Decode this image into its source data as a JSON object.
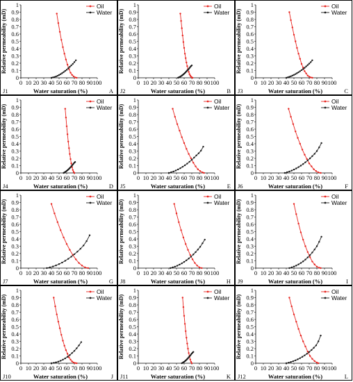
{
  "legend": {
    "oil_label": "Oil",
    "water_label": "Water"
  },
  "colors": {
    "oil": "#e8231e",
    "water": "#1a1a1a",
    "border": "#000000"
  },
  "x_axis_label": "Water saturation (%)",
  "y_axis_label": "Relative permeability (mD)",
  "x_ticks": [
    "0",
    "10",
    "20",
    "30",
    "40",
    "50",
    "60",
    "70",
    "80",
    "90",
    "100"
  ],
  "y_ticks": [
    "0",
    "0.1",
    "0.2",
    "0.3",
    "0.4",
    "0.5",
    "0.6",
    "0.7",
    "0.8",
    "0.9",
    "1"
  ],
  "chart_data": [
    {
      "type": "line",
      "well": "J1",
      "panel": "A",
      "xlim": [
        0,
        100
      ],
      "ylim": [
        0,
        1
      ],
      "legend": "top-right",
      "grid": false,
      "series": [
        {
          "name": "Oil",
          "x": [
            47,
            49,
            51,
            53,
            55,
            57,
            59,
            61,
            63,
            65,
            67,
            69,
            71,
            73
          ],
          "y": [
            0.88,
            0.75,
            0.63,
            0.52,
            0.42,
            0.33,
            0.25,
            0.18,
            0.12,
            0.07,
            0.04,
            0.02,
            0.005,
            0
          ]
        },
        {
          "name": "Water",
          "x": [
            40,
            42,
            44,
            46,
            48,
            50,
            52,
            54,
            56,
            58,
            60,
            62,
            64,
            66,
            68,
            70,
            72
          ],
          "y": [
            0,
            0.005,
            0.01,
            0.018,
            0.027,
            0.038,
            0.05,
            0.063,
            0.078,
            0.094,
            0.11,
            0.13,
            0.15,
            0.17,
            0.19,
            0.215,
            0.24
          ]
        }
      ]
    },
    {
      "type": "line",
      "well": "J2",
      "panel": "B",
      "xlim": [
        0,
        100
      ],
      "ylim": [
        0,
        1
      ],
      "legend": "top-right",
      "grid": false,
      "series": [
        {
          "name": "Oil",
          "x": [
            55,
            56,
            57,
            58,
            59,
            60,
            61,
            62,
            63,
            64,
            65,
            66,
            67,
            68,
            69,
            70,
            71
          ],
          "y": [
            0.88,
            0.78,
            0.68,
            0.58,
            0.49,
            0.41,
            0.33,
            0.27,
            0.21,
            0.16,
            0.12,
            0.08,
            0.05,
            0.03,
            0.015,
            0.005,
            0
          ]
        },
        {
          "name": "Water",
          "x": [
            52,
            53,
            54,
            55,
            56,
            57,
            58,
            59,
            60,
            61,
            62,
            63,
            64,
            65,
            66,
            67,
            68,
            69,
            70
          ],
          "y": [
            0,
            0.005,
            0.01,
            0.016,
            0.023,
            0.03,
            0.038,
            0.047,
            0.056,
            0.066,
            0.077,
            0.088,
            0.1,
            0.11,
            0.12,
            0.135,
            0.148,
            0.16,
            0.17
          ]
        }
      ]
    },
    {
      "type": "line",
      "well": "J3",
      "panel": "C",
      "xlim": [
        0,
        100
      ],
      "ylim": [
        0,
        1
      ],
      "legend": "top-right",
      "grid": false,
      "series": [
        {
          "name": "Oil",
          "x": [
            44,
            46,
            48,
            50,
            52,
            54,
            56,
            58,
            60,
            62,
            64,
            66,
            68,
            70,
            72,
            74
          ],
          "y": [
            0.9,
            0.79,
            0.69,
            0.59,
            0.5,
            0.41,
            0.33,
            0.26,
            0.19,
            0.14,
            0.09,
            0.06,
            0.03,
            0.015,
            0.005,
            0
          ]
        },
        {
          "name": "Water",
          "x": [
            40,
            42,
            44,
            46,
            48,
            50,
            52,
            54,
            56,
            58,
            60,
            62,
            64,
            66,
            68,
            70,
            72,
            74
          ],
          "y": [
            0,
            0.006,
            0.013,
            0.021,
            0.03,
            0.04,
            0.051,
            0.063,
            0.076,
            0.09,
            0.105,
            0.12,
            0.137,
            0.155,
            0.174,
            0.194,
            0.215,
            0.24
          ]
        }
      ]
    },
    {
      "type": "line",
      "well": "J4",
      "panel": "D",
      "xlim": [
        0,
        100
      ],
      "ylim": [
        0,
        1
      ],
      "legend": "top-right",
      "grid": false,
      "series": [
        {
          "name": "Oil",
          "x": [
            58,
            59,
            60,
            61,
            62,
            63,
            64,
            65,
            66,
            67,
            68,
            69,
            70
          ],
          "y": [
            0.88,
            0.76,
            0.64,
            0.53,
            0.43,
            0.34,
            0.26,
            0.19,
            0.13,
            0.08,
            0.04,
            0.015,
            0
          ]
        },
        {
          "name": "Water",
          "x": [
            56,
            57,
            58,
            59,
            60,
            61,
            62,
            63,
            64,
            65,
            66,
            67,
            68,
            69,
            70,
            71
          ],
          "y": [
            0,
            0.006,
            0.013,
            0.02,
            0.028,
            0.037,
            0.046,
            0.056,
            0.067,
            0.078,
            0.09,
            0.102,
            0.115,
            0.128,
            0.14,
            0.15
          ]
        }
      ]
    },
    {
      "type": "line",
      "well": "J5",
      "panel": "E",
      "xlim": [
        0,
        100
      ],
      "ylim": [
        0,
        1
      ],
      "legend": "top-right",
      "grid": false,
      "series": [
        {
          "name": "Oil",
          "x": [
            45,
            48,
            51,
            54,
            57,
            60,
            63,
            66,
            69,
            72,
            75,
            78,
            81,
            84,
            86
          ],
          "y": [
            0.88,
            0.77,
            0.67,
            0.58,
            0.49,
            0.41,
            0.33,
            0.26,
            0.2,
            0.14,
            0.09,
            0.05,
            0.025,
            0.008,
            0
          ]
        },
        {
          "name": "Water",
          "x": [
            40,
            43,
            46,
            49,
            52,
            55,
            58,
            61,
            64,
            67,
            70,
            73,
            76,
            79,
            82,
            85
          ],
          "y": [
            0,
            0.01,
            0.02,
            0.033,
            0.048,
            0.065,
            0.084,
            0.105,
            0.128,
            0.153,
            0.18,
            0.21,
            0.24,
            0.27,
            0.305,
            0.36
          ]
        }
      ]
    },
    {
      "type": "line",
      "well": "J6",
      "panel": "F",
      "xlim": [
        0,
        100
      ],
      "ylim": [
        0,
        1
      ],
      "legend": "top-right",
      "grid": false,
      "series": [
        {
          "name": "Oil",
          "x": [
            43,
            46,
            49,
            52,
            55,
            58,
            61,
            64,
            67,
            70,
            73,
            76,
            79,
            82,
            85
          ],
          "y": [
            0.88,
            0.77,
            0.67,
            0.57,
            0.48,
            0.4,
            0.32,
            0.25,
            0.19,
            0.13,
            0.09,
            0.05,
            0.025,
            0.008,
            0
          ]
        },
        {
          "name": "Water",
          "x": [
            38,
            41,
            44,
            47,
            50,
            53,
            56,
            59,
            62,
            65,
            68,
            71,
            74,
            77,
            80,
            83,
            86
          ],
          "y": [
            0,
            0.01,
            0.02,
            0.032,
            0.046,
            0.062,
            0.08,
            0.1,
            0.122,
            0.146,
            0.172,
            0.2,
            0.23,
            0.262,
            0.3,
            0.35,
            0.41
          ]
        }
      ]
    },
    {
      "type": "line",
      "well": "J7",
      "panel": "G",
      "xlim": [
        0,
        100
      ],
      "ylim": [
        0,
        1
      ],
      "legend": "top-right",
      "grid": false,
      "series": [
        {
          "name": "Oil",
          "x": [
            40,
            44,
            48,
            52,
            56,
            60,
            64,
            68,
            72,
            76,
            80,
            84,
            88
          ],
          "y": [
            0.88,
            0.75,
            0.63,
            0.52,
            0.42,
            0.33,
            0.25,
            0.18,
            0.12,
            0.07,
            0.035,
            0.01,
            0
          ]
        },
        {
          "name": "Water",
          "x": [
            34,
            38,
            42,
            46,
            50,
            54,
            58,
            62,
            66,
            70,
            74,
            78,
            82,
            86,
            90
          ],
          "y": [
            0,
            0.01,
            0.022,
            0.037,
            0.055,
            0.076,
            0.1,
            0.127,
            0.157,
            0.19,
            0.226,
            0.265,
            0.31,
            0.37,
            0.45
          ]
        }
      ]
    },
    {
      "type": "line",
      "well": "J8",
      "panel": "H",
      "xlim": [
        0,
        100
      ],
      "ylim": [
        0,
        1
      ],
      "legend": "top-right",
      "grid": false,
      "series": [
        {
          "name": "Oil",
          "x": [
            47,
            50,
            53,
            56,
            59,
            62,
            65,
            68,
            71,
            74,
            77,
            80,
            83
          ],
          "y": [
            0.88,
            0.75,
            0.63,
            0.52,
            0.42,
            0.33,
            0.25,
            0.18,
            0.12,
            0.07,
            0.035,
            0.01,
            0
          ]
        },
        {
          "name": "Water",
          "x": [
            42,
            45,
            48,
            51,
            54,
            57,
            60,
            63,
            66,
            69,
            72,
            75,
            78,
            81,
            84,
            87
          ],
          "y": [
            0,
            0.01,
            0.02,
            0.033,
            0.048,
            0.065,
            0.085,
            0.107,
            0.131,
            0.158,
            0.187,
            0.219,
            0.254,
            0.292,
            0.34,
            0.39
          ]
        }
      ]
    },
    {
      "type": "line",
      "well": "J9",
      "panel": "I",
      "xlim": [
        0,
        100
      ],
      "ylim": [
        0,
        1
      ],
      "legend": "top-right",
      "grid": false,
      "series": [
        {
          "name": "Oil",
          "x": [
            50,
            53,
            56,
            59,
            62,
            65,
            68,
            71,
            74,
            77,
            80,
            83,
            85
          ],
          "y": [
            0.88,
            0.74,
            0.61,
            0.49,
            0.39,
            0.3,
            0.22,
            0.15,
            0.09,
            0.05,
            0.02,
            0.005,
            0
          ]
        },
        {
          "name": "Water",
          "x": [
            44,
            47,
            50,
            53,
            56,
            59,
            62,
            65,
            68,
            71,
            74,
            77,
            80,
            83,
            86
          ],
          "y": [
            0,
            0.01,
            0.021,
            0.035,
            0.051,
            0.07,
            0.092,
            0.117,
            0.146,
            0.178,
            0.214,
            0.255,
            0.3,
            0.36,
            0.43
          ]
        }
      ]
    },
    {
      "type": "line",
      "well": "J10",
      "panel": "J",
      "xlim": [
        0,
        100
      ],
      "ylim": [
        0,
        1
      ],
      "legend": "top-right",
      "grid": false,
      "series": [
        {
          "name": "Oil",
          "x": [
            43,
            45,
            47,
            49,
            51,
            53,
            55,
            57,
            59,
            61,
            63,
            65,
            67,
            69,
            71,
            73
          ],
          "y": [
            0.9,
            0.78,
            0.67,
            0.57,
            0.48,
            0.39,
            0.31,
            0.24,
            0.18,
            0.13,
            0.08,
            0.05,
            0.025,
            0.01,
            0.003,
            0
          ]
        },
        {
          "name": "Water",
          "x": [
            40,
            43,
            46,
            49,
            52,
            55,
            58,
            61,
            64,
            67,
            70,
            73,
            76,
            79
          ],
          "y": [
            0,
            0.005,
            0.012,
            0.022,
            0.034,
            0.049,
            0.067,
            0.088,
            0.112,
            0.14,
            0.17,
            0.205,
            0.245,
            0.29
          ]
        }
      ]
    },
    {
      "type": "line",
      "well": "J11",
      "panel": "K",
      "xlim": [
        0,
        100
      ],
      "ylim": [
        0,
        1
      ],
      "legend": "top-right",
      "grid": false,
      "series": [
        {
          "name": "Oil",
          "x": [
            58,
            59,
            60,
            61,
            62,
            63,
            64,
            65,
            66,
            67,
            68,
            69,
            70
          ],
          "y": [
            0.9,
            0.77,
            0.65,
            0.54,
            0.44,
            0.35,
            0.27,
            0.2,
            0.14,
            0.09,
            0.05,
            0.02,
            0
          ]
        },
        {
          "name": "Water",
          "x": [
            57,
            58,
            59,
            60,
            61,
            62,
            63,
            64,
            65,
            66,
            67,
            68,
            69,
            70,
            71,
            72
          ],
          "y": [
            0,
            0.006,
            0.013,
            0.02,
            0.028,
            0.037,
            0.047,
            0.058,
            0.069,
            0.081,
            0.094,
            0.107,
            0.12,
            0.133,
            0.145,
            0.155
          ]
        }
      ]
    },
    {
      "type": "line",
      "well": "J12",
      "panel": "L",
      "xlim": [
        0,
        100
      ],
      "ylim": [
        0,
        1
      ],
      "legend": "top-right",
      "grid": false,
      "series": [
        {
          "name": "Oil",
          "x": [
            44,
            47,
            50,
            53,
            56,
            59,
            62,
            65,
            68,
            71,
            74,
            77,
            80,
            82
          ],
          "y": [
            0.9,
            0.78,
            0.67,
            0.57,
            0.47,
            0.38,
            0.3,
            0.23,
            0.16,
            0.1,
            0.06,
            0.03,
            0.01,
            0
          ]
        },
        {
          "name": "Water",
          "x": [
            40,
            43,
            46,
            49,
            52,
            55,
            58,
            61,
            64,
            67,
            70,
            73,
            76,
            79,
            82,
            85
          ],
          "y": [
            0,
            0.008,
            0.017,
            0.028,
            0.04,
            0.054,
            0.07,
            0.088,
            0.108,
            0.13,
            0.155,
            0.182,
            0.212,
            0.245,
            0.3,
            0.38
          ]
        }
      ]
    }
  ]
}
